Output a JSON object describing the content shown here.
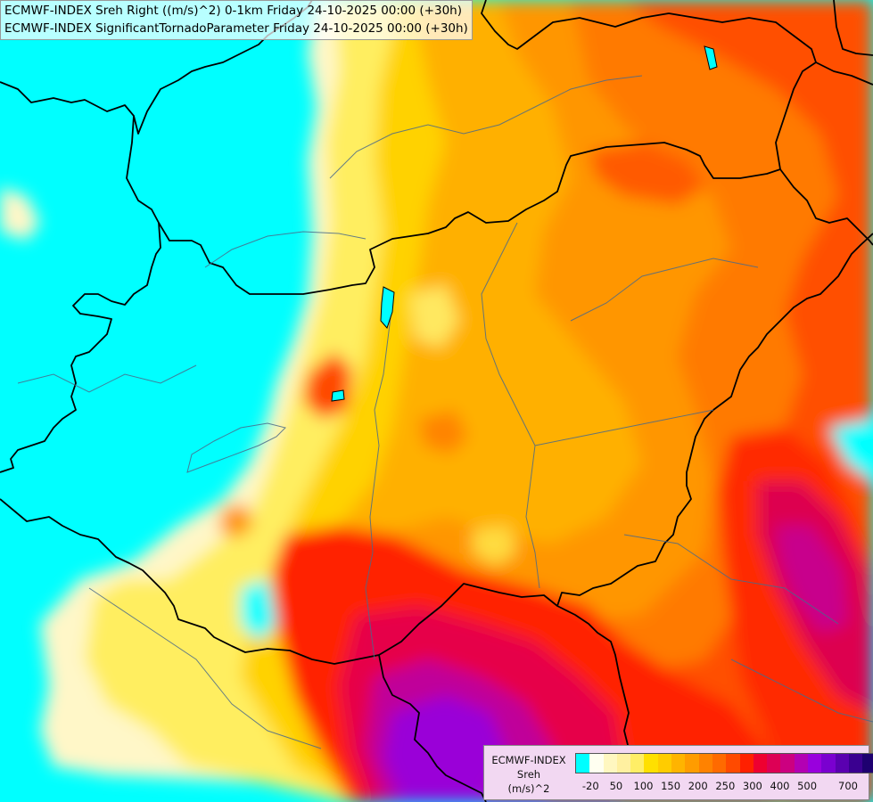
{
  "titles": {
    "line1": "ECMWF-INDEX Sreh Right ((m/s)^2) 0-1km Friday 24-10-2025 00:00 (+30h)",
    "line2": "ECMWF-INDEX SignificantTornadoParameter Friday 24-10-2025 00:00 (+30h)"
  },
  "legend": {
    "model": "ECMWF-INDEX",
    "variable": "Sreh",
    "unit": "(m/s)^2",
    "colors": [
      "#00ffff",
      "#fffff0",
      "#fff7c0",
      "#fff0a0",
      "#ffee66",
      "#ffe000",
      "#ffcc00",
      "#ffb400",
      "#ff9c00",
      "#ff8200",
      "#ff6a00",
      "#ff4a00",
      "#ff2000",
      "#ee0030",
      "#dd0055",
      "#cc0080",
      "#b300b3",
      "#9900dd",
      "#7a00d0",
      "#5a00b0",
      "#3a0090",
      "#1e0070"
    ],
    "ticks": [
      "-20",
      "50",
      "100",
      "150",
      "200",
      "250",
      "300",
      "400",
      "500",
      "700"
    ]
  }
}
